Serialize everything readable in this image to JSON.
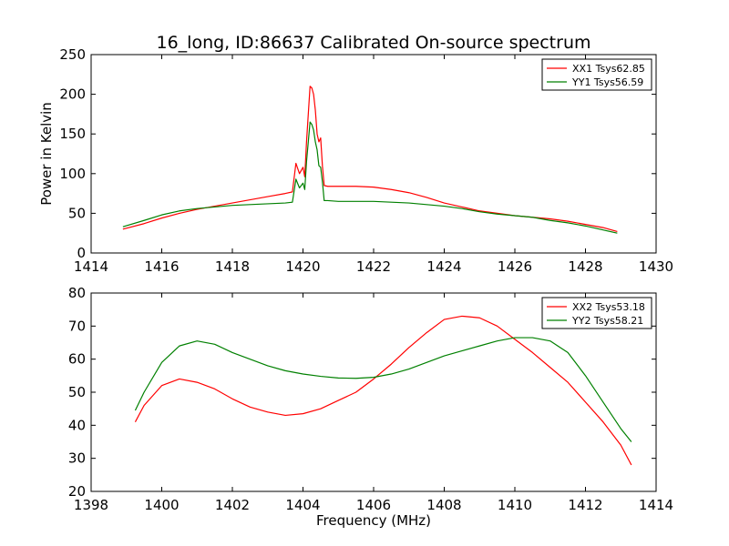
{
  "title": "16_long, ID:86637 Calibrated On-source spectrum",
  "chart_data": [
    {
      "type": "line",
      "title": "16_long, ID:86637 Calibrated On-source spectrum",
      "xlabel": "",
      "ylabel": "Power in Kelvin",
      "xlim": [
        1414,
        1430
      ],
      "ylim": [
        0,
        250
      ],
      "xticks": [
        1414,
        1416,
        1418,
        1420,
        1422,
        1424,
        1426,
        1428,
        1430
      ],
      "yticks": [
        0,
        50,
        100,
        150,
        200,
        250
      ],
      "grid": false,
      "legend_position": "top-right",
      "series": [
        {
          "name": "XX1 Tsys62.85",
          "color": "#ff0000",
          "x": [
            1414.9,
            1415.5,
            1416.0,
            1416.5,
            1417.0,
            1417.5,
            1418.0,
            1418.5,
            1419.0,
            1419.5,
            1419.7,
            1419.8,
            1419.9,
            1420.0,
            1420.05,
            1420.1,
            1420.15,
            1420.2,
            1420.25,
            1420.3,
            1420.35,
            1420.4,
            1420.45,
            1420.5,
            1420.55,
            1420.6,
            1420.7,
            1421.0,
            1421.5,
            1422.0,
            1422.5,
            1423.0,
            1423.5,
            1424.0,
            1424.5,
            1425.0,
            1425.5,
            1426.0,
            1426.5,
            1427.0,
            1427.5,
            1428.0,
            1428.5,
            1428.9
          ],
          "y": [
            30,
            37,
            44,
            50,
            55,
            59,
            63,
            67,
            71,
            75,
            77,
            113,
            100,
            108,
            96,
            140,
            175,
            210,
            208,
            200,
            180,
            150,
            140,
            145,
            110,
            85,
            84,
            84,
            84,
            83,
            80,
            76,
            70,
            63,
            58,
            53,
            50,
            47,
            45,
            43,
            40,
            36,
            32,
            27
          ]
        },
        {
          "name": "YY1 Tsys56.59",
          "color": "#008000",
          "x": [
            1414.9,
            1415.5,
            1416.0,
            1416.5,
            1417.0,
            1417.5,
            1418.0,
            1418.5,
            1419.0,
            1419.5,
            1419.7,
            1419.8,
            1419.9,
            1420.0,
            1420.05,
            1420.1,
            1420.15,
            1420.2,
            1420.25,
            1420.3,
            1420.35,
            1420.4,
            1420.45,
            1420.5,
            1420.55,
            1420.6,
            1420.7,
            1421.0,
            1421.5,
            1422.0,
            1422.5,
            1423.0,
            1423.5,
            1424.0,
            1424.5,
            1425.0,
            1425.5,
            1426.0,
            1426.5,
            1427.0,
            1427.5,
            1428.0,
            1428.5,
            1428.9
          ],
          "y": [
            33,
            41,
            48,
            53,
            56,
            58,
            60,
            61,
            62,
            63,
            64,
            93,
            82,
            88,
            80,
            115,
            140,
            165,
            162,
            155,
            140,
            130,
            110,
            108,
            90,
            66,
            66,
            65,
            65,
            65,
            64,
            63,
            61,
            59,
            56,
            52,
            49,
            47,
            45,
            41,
            38,
            34,
            29,
            25
          ]
        }
      ]
    },
    {
      "type": "line",
      "title": "",
      "xlabel": "Frequency (MHz)",
      "ylabel": "",
      "xlim": [
        1398,
        1414
      ],
      "ylim": [
        20,
        80
      ],
      "xticks": [
        1398,
        1400,
        1402,
        1404,
        1406,
        1408,
        1410,
        1412,
        1414
      ],
      "yticks": [
        20,
        30,
        40,
        50,
        60,
        70,
        80
      ],
      "grid": false,
      "legend_position": "top-right",
      "series": [
        {
          "name": "XX2 Tsys53.18",
          "color": "#ff0000",
          "x": [
            1399.25,
            1399.5,
            1400.0,
            1400.5,
            1401.0,
            1401.5,
            1402.0,
            1402.5,
            1403.0,
            1403.5,
            1404.0,
            1404.5,
            1405.0,
            1405.5,
            1406.0,
            1406.5,
            1407.0,
            1407.5,
            1408.0,
            1408.5,
            1409.0,
            1409.5,
            1410.0,
            1410.5,
            1411.0,
            1411.5,
            1412.0,
            1412.5,
            1413.0,
            1413.3
          ],
          "y": [
            41,
            46,
            52,
            54,
            53,
            51,
            48,
            45.5,
            44,
            43,
            43.5,
            45,
            47.5,
            50,
            54,
            58.5,
            63.5,
            68,
            72,
            73,
            72.5,
            70,
            66,
            62,
            57.5,
            53,
            47,
            41,
            34,
            28
          ]
        },
        {
          "name": "YY2 Tsys58.21",
          "color": "#008000",
          "x": [
            1399.25,
            1399.5,
            1400.0,
            1400.5,
            1401.0,
            1401.5,
            1402.0,
            1402.5,
            1403.0,
            1403.5,
            1404.0,
            1404.5,
            1405.0,
            1405.5,
            1406.0,
            1406.5,
            1407.0,
            1407.5,
            1408.0,
            1408.5,
            1409.0,
            1409.5,
            1410.0,
            1410.5,
            1411.0,
            1411.5,
            1412.0,
            1412.5,
            1413.0,
            1413.3
          ],
          "y": [
            44.5,
            50,
            59,
            64,
            65.5,
            64.5,
            62,
            60,
            58,
            56.5,
            55.5,
            54.8,
            54.3,
            54.2,
            54.5,
            55.5,
            57,
            59,
            61,
            62.5,
            64,
            65.5,
            66.5,
            66.5,
            65.5,
            62,
            55,
            47,
            39,
            35
          ]
        }
      ]
    }
  ]
}
